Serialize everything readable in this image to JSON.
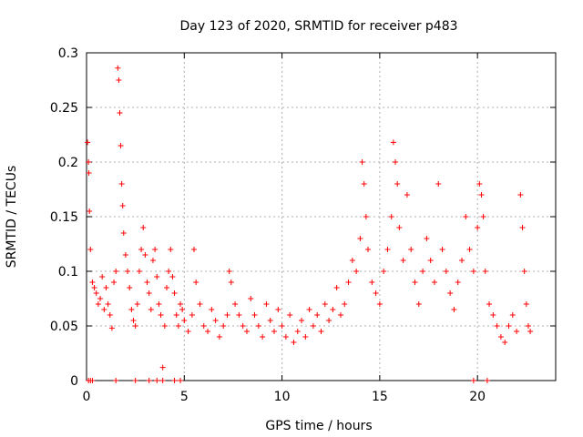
{
  "chart_data": {
    "type": "scatter",
    "title": "Day 123 of 2020, SRMTID for receiver p483",
    "xlabel": "GPS time / hours",
    "ylabel": "SRMTID / TECUs",
    "xlim": [
      0,
      24
    ],
    "ylim": [
      0,
      0.3
    ],
    "xticks": [
      0,
      5,
      10,
      15,
      20
    ],
    "xtick_labels": [
      "0",
      "5",
      "10",
      "15",
      "20"
    ],
    "yticks": [
      0,
      0.05,
      0.1,
      0.15,
      0.2,
      0.25,
      0.3
    ],
    "ytick_labels": [
      "0",
      "0.05",
      "0.1",
      "0.15",
      "0.2",
      "0.25",
      "0.3"
    ],
    "grid": true,
    "marker": "+",
    "color": "#ff0000",
    "points": [
      [
        0.05,
        0.218
      ],
      [
        0.1,
        0.2
      ],
      [
        0.12,
        0.19
      ],
      [
        0.15,
        0.155
      ],
      [
        0.2,
        0.12
      ],
      [
        0.3,
        0.09
      ],
      [
        0.4,
        0.085
      ],
      [
        0.5,
        0.08
      ],
      [
        0.6,
        0.07
      ],
      [
        0.7,
        0.075
      ],
      [
        0.8,
        0.095
      ],
      [
        0.9,
        0.065
      ],
      [
        1.0,
        0.085
      ],
      [
        1.1,
        0.07
      ],
      [
        1.2,
        0.06
      ],
      [
        1.3,
        0.048
      ],
      [
        1.4,
        0.09
      ],
      [
        1.5,
        0.1
      ],
      [
        1.6,
        0.286
      ],
      [
        1.65,
        0.275
      ],
      [
        1.7,
        0.245
      ],
      [
        1.75,
        0.215
      ],
      [
        1.8,
        0.18
      ],
      [
        1.85,
        0.16
      ],
      [
        1.9,
        0.135
      ],
      [
        2.0,
        0.115
      ],
      [
        2.1,
        0.1
      ],
      [
        2.2,
        0.085
      ],
      [
        2.3,
        0.065
      ],
      [
        2.4,
        0.055
      ],
      [
        2.5,
        0.05
      ],
      [
        2.6,
        0.07
      ],
      [
        2.7,
        0.1
      ],
      [
        2.8,
        0.12
      ],
      [
        2.9,
        0.14
      ],
      [
        3.0,
        0.115
      ],
      [
        3.1,
        0.09
      ],
      [
        3.2,
        0.08
      ],
      [
        3.3,
        0.065
      ],
      [
        3.4,
        0.11
      ],
      [
        3.5,
        0.12
      ],
      [
        3.6,
        0.095
      ],
      [
        3.7,
        0.07
      ],
      [
        3.8,
        0.06
      ],
      [
        3.9,
        0.012
      ],
      [
        4.0,
        0.05
      ],
      [
        4.1,
        0.085
      ],
      [
        4.2,
        0.1
      ],
      [
        4.3,
        0.12
      ],
      [
        4.4,
        0.095
      ],
      [
        4.5,
        0.08
      ],
      [
        4.6,
        0.06
      ],
      [
        4.7,
        0.05
      ],
      [
        4.8,
        0.07
      ],
      [
        4.9,
        0.065
      ],
      [
        5.0,
        0.055
      ],
      [
        5.2,
        0.045
      ],
      [
        5.4,
        0.06
      ],
      [
        5.5,
        0.12
      ],
      [
        5.6,
        0.09
      ],
      [
        5.8,
        0.07
      ],
      [
        6.0,
        0.05
      ],
      [
        6.2,
        0.045
      ],
      [
        6.4,
        0.065
      ],
      [
        6.6,
        0.055
      ],
      [
        6.8,
        0.04
      ],
      [
        7.0,
        0.05
      ],
      [
        7.2,
        0.06
      ],
      [
        7.3,
        0.1
      ],
      [
        7.4,
        0.09
      ],
      [
        7.6,
        0.07
      ],
      [
        7.8,
        0.06
      ],
      [
        8.0,
        0.05
      ],
      [
        8.2,
        0.045
      ],
      [
        8.4,
        0.075
      ],
      [
        8.6,
        0.06
      ],
      [
        8.8,
        0.05
      ],
      [
        9.0,
        0.04
      ],
      [
        9.2,
        0.07
      ],
      [
        9.4,
        0.055
      ],
      [
        9.6,
        0.045
      ],
      [
        9.8,
        0.065
      ],
      [
        10.0,
        0.05
      ],
      [
        10.2,
        0.04
      ],
      [
        10.4,
        0.06
      ],
      [
        10.6,
        0.035
      ],
      [
        10.8,
        0.045
      ],
      [
        11.0,
        0.055
      ],
      [
        11.2,
        0.04
      ],
      [
        11.4,
        0.065
      ],
      [
        11.6,
        0.05
      ],
      [
        11.8,
        0.06
      ],
      [
        12.0,
        0.045
      ],
      [
        12.2,
        0.07
      ],
      [
        12.4,
        0.055
      ],
      [
        12.6,
        0.065
      ],
      [
        12.8,
        0.085
      ],
      [
        13.0,
        0.06
      ],
      [
        13.2,
        0.07
      ],
      [
        13.4,
        0.09
      ],
      [
        13.6,
        0.11
      ],
      [
        13.8,
        0.1
      ],
      [
        14.0,
        0.13
      ],
      [
        14.1,
        0.2
      ],
      [
        14.2,
        0.18
      ],
      [
        14.3,
        0.15
      ],
      [
        14.4,
        0.12
      ],
      [
        14.6,
        0.09
      ],
      [
        14.8,
        0.08
      ],
      [
        15.0,
        0.07
      ],
      [
        15.2,
        0.1
      ],
      [
        15.4,
        0.12
      ],
      [
        15.6,
        0.15
      ],
      [
        15.7,
        0.218
      ],
      [
        15.8,
        0.2
      ],
      [
        15.9,
        0.18
      ],
      [
        16.0,
        0.14
      ],
      [
        16.2,
        0.11
      ],
      [
        16.4,
        0.17
      ],
      [
        16.6,
        0.12
      ],
      [
        16.8,
        0.09
      ],
      [
        17.0,
        0.07
      ],
      [
        17.2,
        0.1
      ],
      [
        17.4,
        0.13
      ],
      [
        17.6,
        0.11
      ],
      [
        17.8,
        0.09
      ],
      [
        18.0,
        0.18
      ],
      [
        18.2,
        0.12
      ],
      [
        18.4,
        0.1
      ],
      [
        18.6,
        0.08
      ],
      [
        18.8,
        0.065
      ],
      [
        19.0,
        0.09
      ],
      [
        19.2,
        0.11
      ],
      [
        19.4,
        0.15
      ],
      [
        19.6,
        0.12
      ],
      [
        19.8,
        0.1
      ],
      [
        20.0,
        0.14
      ],
      [
        20.1,
        0.18
      ],
      [
        20.2,
        0.17
      ],
      [
        20.3,
        0.15
      ],
      [
        20.4,
        0.1
      ],
      [
        20.6,
        0.07
      ],
      [
        20.8,
        0.06
      ],
      [
        21.0,
        0.05
      ],
      [
        21.2,
        0.04
      ],
      [
        21.4,
        0.035
      ],
      [
        21.6,
        0.05
      ],
      [
        21.8,
        0.06
      ],
      [
        22.0,
        0.045
      ],
      [
        22.2,
        0.17
      ],
      [
        22.3,
        0.14
      ],
      [
        22.4,
        0.1
      ],
      [
        22.5,
        0.07
      ],
      [
        22.6,
        0.05
      ],
      [
        22.7,
        0.045
      ],
      [
        0.1,
        0
      ],
      [
        0.2,
        0
      ],
      [
        0.3,
        0
      ],
      [
        1.5,
        0
      ],
      [
        2.5,
        0
      ],
      [
        3.2,
        0
      ],
      [
        3.6,
        0
      ],
      [
        3.9,
        0
      ],
      [
        4.5,
        0
      ],
      [
        4.8,
        0
      ],
      [
        19.8,
        0
      ],
      [
        20.5,
        0
      ]
    ]
  }
}
